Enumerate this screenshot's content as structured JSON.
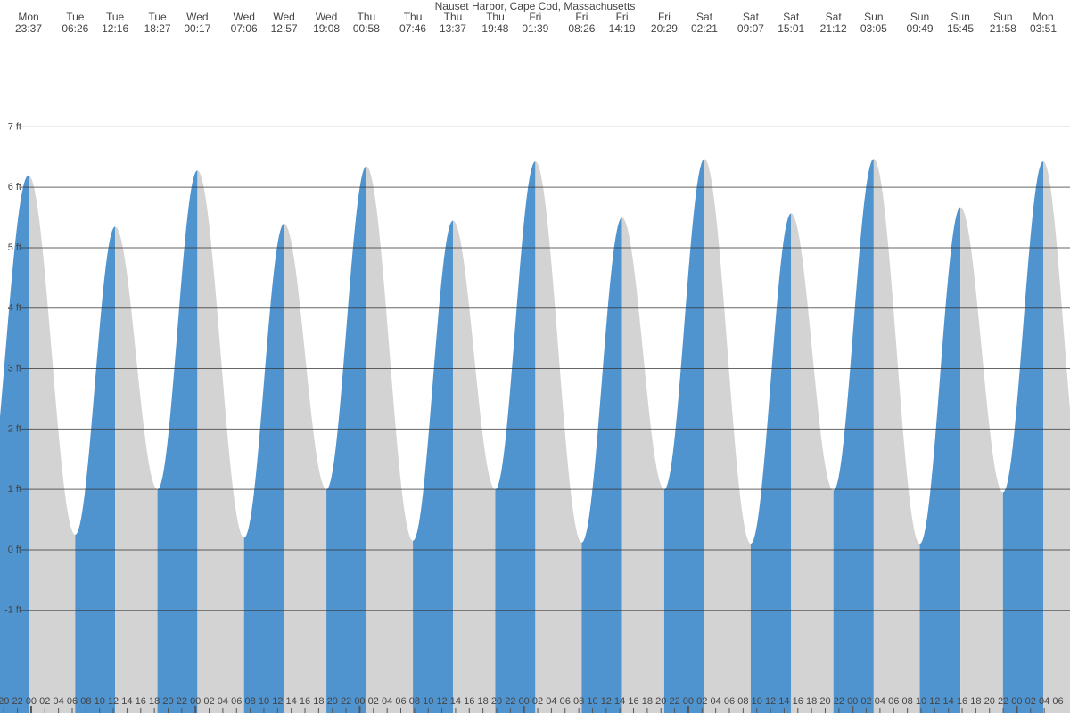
{
  "chart_data": {
    "type": "tide",
    "title": "Nauset Harbor, Cape Cod, Massachusetts",
    "days": [
      "Mon",
      "Tue",
      "Tue",
      "Tue",
      "Wed",
      "Wed",
      "Wed",
      "Wed",
      "Thu",
      "Thu",
      "Thu",
      "Thu",
      "Fri",
      "Fri",
      "Fri",
      "Fri",
      "Sat",
      "Sat",
      "Sat",
      "Sat",
      "Sun",
      "Sun",
      "Sun",
      "Sun",
      "Mon"
    ],
    "times": [
      "23:37",
      "06:26",
      "12:16",
      "18:27",
      "00:17",
      "07:06",
      "12:57",
      "19:08",
      "00:58",
      "07:46",
      "13:37",
      "19:48",
      "01:39",
      "08:26",
      "14:19",
      "20:29",
      "02:21",
      "09:07",
      "15:01",
      "21:12",
      "03:05",
      "09:49",
      "15:45",
      "21:58",
      "03:51"
    ],
    "values": [
      6.2,
      0.25,
      5.35,
      1.0,
      6.28,
      0.2,
      5.4,
      1.0,
      6.35,
      0.15,
      5.45,
      1.0,
      6.43,
      0.12,
      5.5,
      1.0,
      6.47,
      0.1,
      5.57,
      0.98,
      6.47,
      0.1,
      5.67,
      0.95,
      6.43
    ],
    "colors": {
      "rising": "#4f93cf",
      "falling": "#d3d3d3"
    },
    "ylim": [
      -2.7,
      9.1
    ],
    "yticks": [
      {
        "value": -1,
        "label": "-1 ft"
      },
      {
        "value": 0,
        "label": "0 ft"
      },
      {
        "value": 1,
        "label": "1 ft"
      },
      {
        "value": 2,
        "label": "2 ft"
      },
      {
        "value": 3,
        "label": "3 ft"
      },
      {
        "value": 4,
        "label": "4 ft"
      },
      {
        "value": 5,
        "label": "5 ft"
      },
      {
        "value": 6,
        "label": "6 ft"
      },
      {
        "value": 7,
        "label": "7 ft"
      }
    ],
    "grid": true,
    "hour_labels": [
      "20",
      "22",
      "00",
      "02",
      "04",
      "06",
      "08",
      "10",
      "12",
      "14",
      "16",
      "18",
      "20",
      "22",
      "00",
      "02",
      "04",
      "06",
      "08",
      "10",
      "12",
      "14",
      "16",
      "18",
      "20",
      "22",
      "00",
      "02",
      "04",
      "06",
      "08",
      "10",
      "12",
      "14",
      "16",
      "18",
      "20",
      "22",
      "00",
      "02",
      "04",
      "06",
      "08",
      "10",
      "12",
      "14",
      "16",
      "18",
      "20",
      "22",
      "00",
      "02",
      "04",
      "06",
      "08",
      "10",
      "12",
      "14",
      "16",
      "18",
      "20",
      "22",
      "00",
      "02",
      "04",
      "06",
      "08",
      "10",
      "12",
      "14",
      "16",
      "18",
      "20",
      "22",
      "00",
      "02",
      "04",
      "06"
    ]
  }
}
